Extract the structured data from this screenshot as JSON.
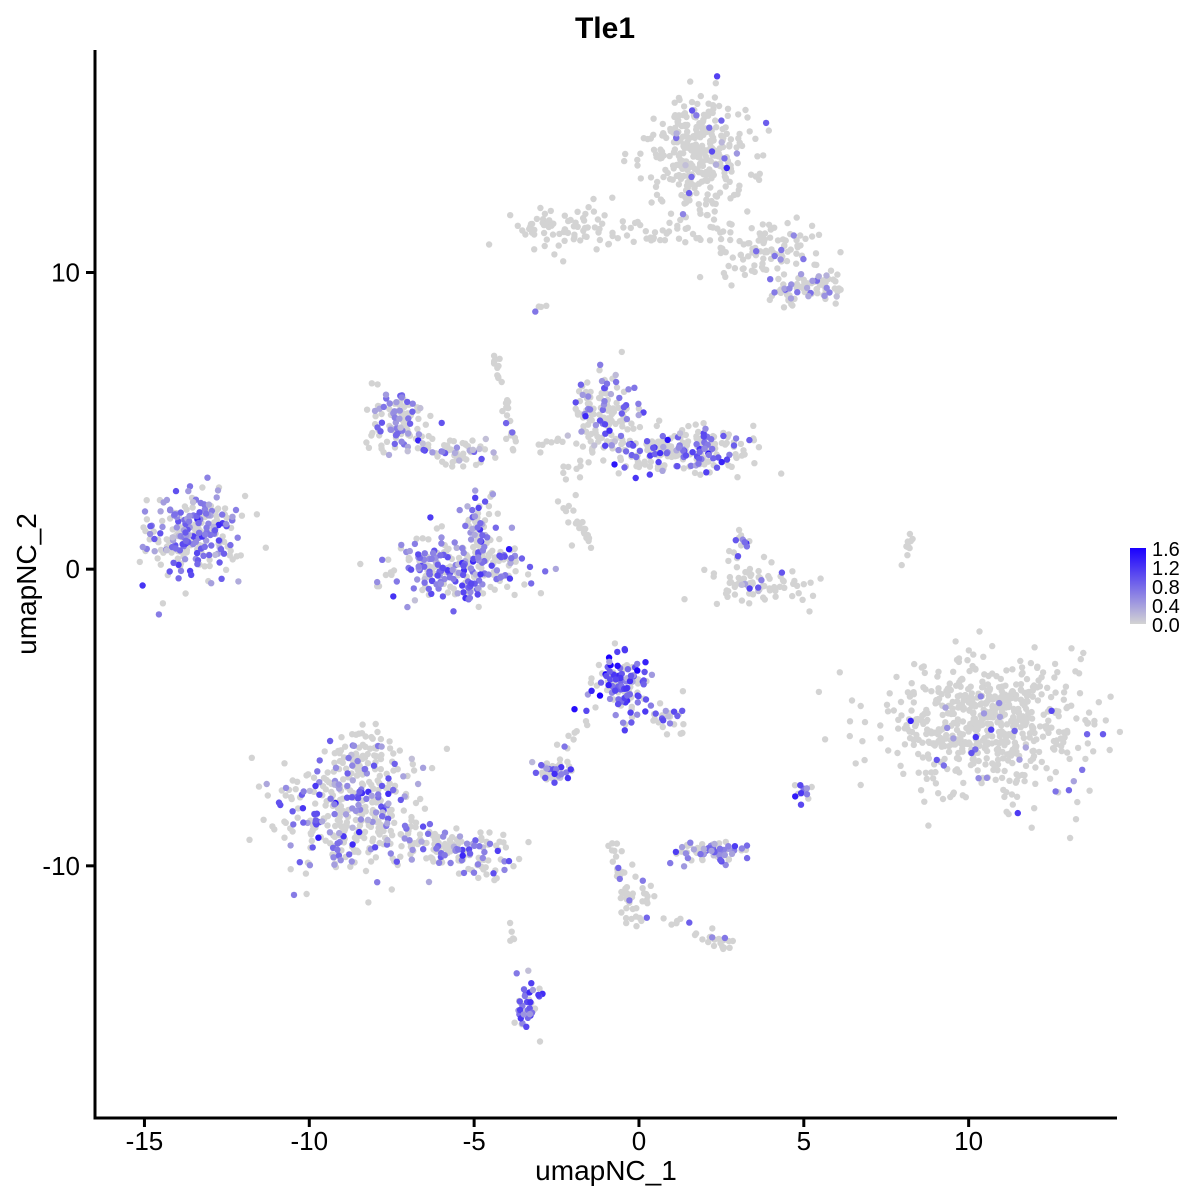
{
  "chart_data": {
    "type": "scatter",
    "title": "Tle1",
    "xlabel": "umapNC_1",
    "ylabel": "umapNC_2",
    "xlim": [
      -16.5,
      14.5
    ],
    "ylim": [
      -18.5,
      17.5
    ],
    "x_ticks": [
      -15,
      -10,
      -5,
      0,
      5,
      10
    ],
    "x_tick_labels": [
      "-15",
      "-10",
      "-5",
      "0",
      "5",
      "10"
    ],
    "y_ticks": [
      -10,
      0,
      10
    ],
    "y_tick_labels": [
      "-10",
      "0",
      "10"
    ],
    "grid": false,
    "colors": {
      "low": "#d3d3d3",
      "high": "#1a00ff"
    },
    "legend": {
      "placement": "right",
      "labels": [
        "1.6",
        "1.2",
        "0.8",
        "0.4",
        "0.0"
      ],
      "range": [
        0.0,
        1.6
      ]
    },
    "clusters": [
      {
        "cx": -13.4,
        "cy": 1.2,
        "sx": 0.75,
        "sy": 0.65,
        "n": 260,
        "expr_frac": 0.55,
        "mean_expr": 0.7
      },
      {
        "cx": -5.3,
        "cy": 0.0,
        "sx": 1.05,
        "sy": 0.5,
        "n": 260,
        "expr_frac": 0.45,
        "mean_expr": 0.7
      },
      {
        "cx": -4.8,
        "cy": 1.4,
        "sx": 0.25,
        "sy": 0.6,
        "n": 60,
        "expr_frac": 0.4,
        "mean_expr": 0.7
      },
      {
        "cx": -7.3,
        "cy": 5.0,
        "sx": 0.45,
        "sy": 0.55,
        "n": 110,
        "expr_frac": 0.4,
        "mean_expr": 0.6
      },
      {
        "cx": -5.6,
        "cy": 4.0,
        "sx": 0.6,
        "sy": 0.3,
        "n": 60,
        "expr_frac": 0.3,
        "mean_expr": 0.6
      },
      {
        "cx": -0.9,
        "cy": 5.4,
        "sx": 0.45,
        "sy": 0.6,
        "n": 120,
        "expr_frac": 0.35,
        "mean_expr": 0.7
      },
      {
        "cx": 1.3,
        "cy": 4.0,
        "sx": 1.2,
        "sy": 0.35,
        "n": 240,
        "expr_frac": 0.3,
        "mean_expr": 0.8
      },
      {
        "cx": 1.8,
        "cy": 14.0,
        "sx": 0.75,
        "sy": 1.0,
        "n": 330,
        "expr_frac": 0.06,
        "mean_expr": 0.6
      },
      {
        "cx": 4.0,
        "cy": 10.8,
        "sx": 0.8,
        "sy": 0.55,
        "n": 80,
        "expr_frac": 0.06,
        "mean_expr": 0.6
      },
      {
        "cx": 5.6,
        "cy": 9.6,
        "sx": 0.35,
        "sy": 0.3,
        "n": 50,
        "expr_frac": 0.25,
        "mean_expr": 0.6
      },
      {
        "cx": 4.5,
        "cy": 9.2,
        "sx": 0.3,
        "sy": 0.25,
        "n": 25,
        "expr_frac": 0.3,
        "mean_expr": 0.6
      },
      {
        "cx": -2.0,
        "cy": 11.5,
        "sx": 0.9,
        "sy": 0.35,
        "n": 80,
        "expr_frac": 0.0,
        "mean_expr": 0.5
      },
      {
        "cx": 0.5,
        "cy": 11.2,
        "sx": 1.1,
        "sy": 0.2,
        "n": 30,
        "expr_frac": 0.0,
        "mean_expr": 0.5
      },
      {
        "cx": 3.5,
        "cy": -0.5,
        "sx": 0.7,
        "sy": 0.3,
        "n": 80,
        "expr_frac": 0.15,
        "mean_expr": 0.6
      },
      {
        "cx": 3.1,
        "cy": 0.8,
        "sx": 0.15,
        "sy": 0.3,
        "n": 15,
        "expr_frac": 0.5,
        "mean_expr": 0.7
      },
      {
        "cx": 10.6,
        "cy": -5.3,
        "sx": 1.5,
        "sy": 1.1,
        "n": 620,
        "expr_frac": 0.05,
        "mean_expr": 0.7
      },
      {
        "cx": -0.5,
        "cy": -3.9,
        "sx": 0.45,
        "sy": 0.55,
        "n": 120,
        "expr_frac": 0.6,
        "mean_expr": 1.0
      },
      {
        "cx": 0.9,
        "cy": -4.9,
        "sx": 0.5,
        "sy": 0.3,
        "n": 30,
        "expr_frac": 0.45,
        "mean_expr": 0.8
      },
      {
        "cx": -8.6,
        "cy": -8.3,
        "sx": 1.1,
        "sy": 1.0,
        "n": 380,
        "expr_frac": 0.3,
        "mean_expr": 0.7
      },
      {
        "cx": -8.4,
        "cy": -6.2,
        "sx": 0.5,
        "sy": 0.5,
        "n": 60,
        "expr_frac": 0.2,
        "mean_expr": 0.6
      },
      {
        "cx": -5.3,
        "cy": -9.5,
        "sx": 0.8,
        "sy": 0.4,
        "n": 70,
        "expr_frac": 0.35,
        "mean_expr": 0.7
      },
      {
        "cx": -2.6,
        "cy": -6.8,
        "sx": 0.3,
        "sy": 0.2,
        "n": 40,
        "expr_frac": 0.45,
        "mean_expr": 0.7
      },
      {
        "cx": 2.2,
        "cy": -9.5,
        "sx": 0.45,
        "sy": 0.2,
        "n": 70,
        "expr_frac": 0.55,
        "mean_expr": 0.7
      },
      {
        "cx": -3.4,
        "cy": -14.7,
        "sx": 0.2,
        "sy": 0.45,
        "n": 40,
        "expr_frac": 0.5,
        "mean_expr": 0.8
      },
      {
        "cx": -0.1,
        "cy": -11.2,
        "sx": 0.3,
        "sy": 0.5,
        "n": 30,
        "expr_frac": 0.2,
        "mean_expr": 0.6
      },
      {
        "cx": 2.4,
        "cy": -12.5,
        "sx": 0.2,
        "sy": 0.15,
        "n": 15,
        "expr_frac": 0.4,
        "mean_expr": 0.8
      },
      {
        "cx": 5.0,
        "cy": -7.4,
        "sx": 0.2,
        "sy": 0.2,
        "n": 12,
        "expr_frac": 0.4,
        "mean_expr": 0.7
      }
    ],
    "trails": [
      {
        "from": [
          -4.4,
          7.5
        ],
        "to": [
          -3.8,
          4.0
        ],
        "n": 30,
        "spread": 0.1,
        "expr_frac": 0.1
      },
      {
        "from": [
          -3.0,
          4.0
        ],
        "to": [
          -2.6,
          4.3
        ],
        "n": 8,
        "spread": 0.15,
        "expr_frac": 0.1
      },
      {
        "from": [
          -2.4,
          2.3
        ],
        "to": [
          -1.2,
          0.7
        ],
        "n": 20,
        "spread": 0.1,
        "expr_frac": 0.0
      },
      {
        "from": [
          -2.2,
          2.7
        ],
        "to": [
          -1.3,
          5.0
        ],
        "n": 22,
        "spread": 0.2,
        "expr_frac": 0.0
      },
      {
        "from": [
          2.1,
          11.4
        ],
        "to": [
          3.7,
          10.2
        ],
        "n": 25,
        "spread": 0.25,
        "expr_frac": 0.05
      },
      {
        "from": [
          8.0,
          0.2
        ],
        "to": [
          8.3,
          1.1
        ],
        "n": 10,
        "spread": 0.05,
        "expr_frac": 0.0
      },
      {
        "from": [
          7.5,
          -1.3
        ],
        "to": [
          8.5,
          -4.6
        ],
        "n": 0,
        "spread": 0.1,
        "expr_frac": 0.0
      },
      {
        "from": [
          -6.7,
          -9.0
        ],
        "to": [
          -4.2,
          -10.3
        ],
        "n": 50,
        "spread": 0.25,
        "expr_frac": 0.25
      },
      {
        "from": [
          -0.8,
          -9.2
        ],
        "to": [
          -0.3,
          -12.0
        ],
        "n": 25,
        "spread": 0.1,
        "expr_frac": 0.15
      },
      {
        "from": [
          0.5,
          -11.6
        ],
        "to": [
          2.3,
          -12.5
        ],
        "n": 12,
        "spread": 0.1,
        "expr_frac": 0.1
      },
      {
        "from": [
          -3.9,
          -11.9
        ],
        "to": [
          -3.8,
          -12.8
        ],
        "n": 5,
        "spread": 0.05,
        "expr_frac": 0.0
      },
      {
        "from": [
          -1.2,
          1.3
        ],
        "to": [
          -1.2,
          1.3
        ],
        "n": 0,
        "spread": 0.1,
        "expr_frac": 0.0
      },
      {
        "from": [
          -3.2,
          8.7
        ],
        "to": [
          -2.6,
          9.0
        ],
        "n": 4,
        "spread": 0.05,
        "expr_frac": 0.3
      },
      {
        "from": [
          -1.6,
          -5.0
        ],
        "to": [
          -2.5,
          -6.6
        ],
        "n": 8,
        "spread": 0.1,
        "expr_frac": 0.3
      }
    ]
  }
}
